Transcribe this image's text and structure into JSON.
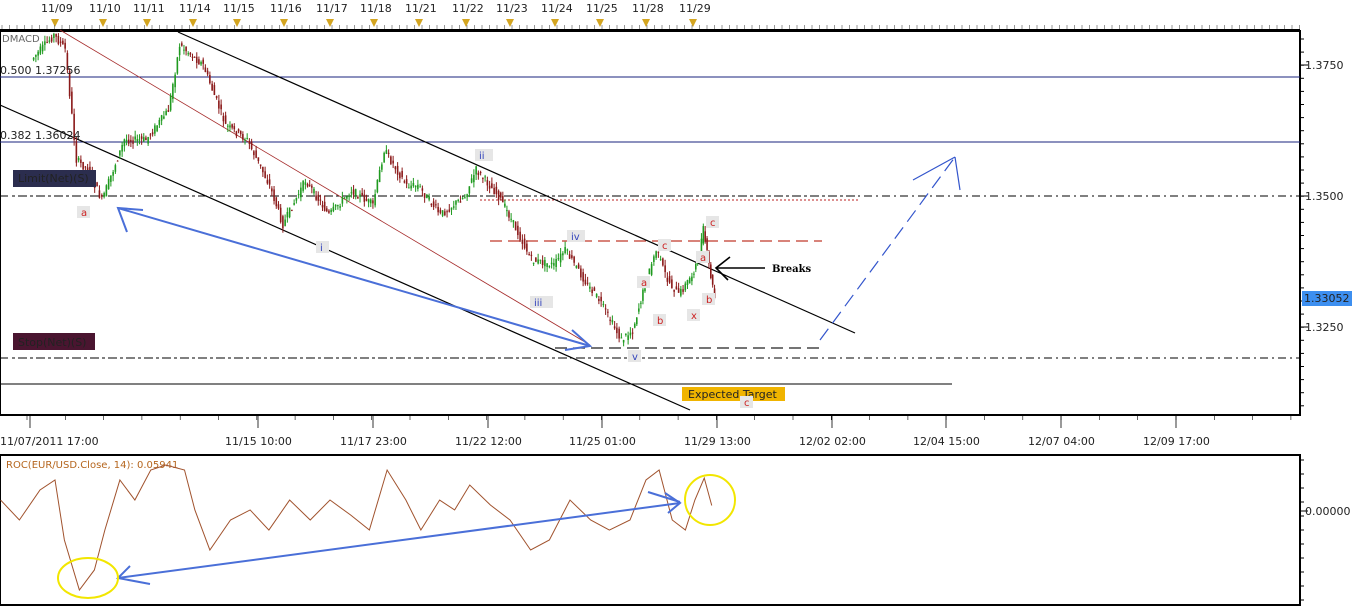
{
  "chart_data": [
    {
      "type": "candlestick",
      "title": "DMACD",
      "instrument": "EUR/USD",
      "top_date_labels": [
        "11/09",
        "11/10",
        "11/11",
        "11/14",
        "11/15",
        "11/16",
        "11/17",
        "11/18",
        "11/21",
        "11/22",
        "11/23",
        "11/24",
        "11/25",
        "11/28",
        "11/29"
      ],
      "x_tick_labels": [
        "11/07/2011 17:00",
        "11/15 10:00",
        "11/17 23:00",
        "11/22 12:00",
        "11/25 01:00",
        "11/29 13:00",
        "12/02 02:00",
        "12/04 15:00",
        "12/07 04:00",
        "12/09 17:00"
      ],
      "y_tick_labels": [
        "1.3750",
        "1.3500",
        "1.3250"
      ],
      "ylim": [
        1.31,
        1.383
      ],
      "current_price": "1.33052",
      "colors": {
        "up": "#1f9a1f",
        "down": "#8b1a1a",
        "current_price_bg": "#3d8ff0"
      },
      "close_path": {
        "x": [
          "11/08 12:00",
          "11/09 00:00",
          "11/09 06:00",
          "11/09 12:00",
          "11/09 18:00",
          "11/10 00:00",
          "11/10 12:00",
          "11/11 00:00",
          "11/11 12:00",
          "11/11 18:00",
          "11/14 06:00",
          "11/14 18:00",
          "11/15 06:00",
          "11/15 18:00",
          "11/16 00:00",
          "11/16 12:00",
          "11/17 00:00",
          "11/17 12:00",
          "11/18 00:00",
          "11/18 06:00",
          "11/18 18:00",
          "11/21 00:00",
          "11/21 12:00",
          "11/22 00:00",
          "11/22 06:00",
          "11/22 18:00",
          "11/23 00:00",
          "11/23 12:00",
          "11/24 00:00",
          "11/24 06:00",
          "11/24 18:00",
          "11/25 00:00",
          "11/25 12:00",
          "11/25 18:00",
          "11/28 00:00",
          "11/28 06:00",
          "11/28 12:00",
          "11/28 18:00",
          "11/29 00:00",
          "11/29 03:00",
          "11/29 06:00",
          "11/29 09:00",
          "11/29 12:00"
        ],
        "y": [
          1.376,
          1.3807,
          1.378,
          1.3569,
          1.355,
          1.3492,
          1.3607,
          1.3607,
          1.3664,
          1.3788,
          1.375,
          1.3635,
          1.3607,
          1.352,
          1.3445,
          1.353,
          1.3464,
          1.3511,
          1.3483,
          1.3588,
          1.352,
          1.352,
          1.3464,
          1.35,
          1.355,
          1.35,
          1.3464,
          1.3378,
          1.3368,
          1.3397,
          1.333,
          1.3302,
          1.3225,
          1.3244,
          1.333,
          1.3397,
          1.334,
          1.3311,
          1.3349,
          1.3378,
          1.3435,
          1.3368,
          1.3305
        ]
      },
      "levels": [
        {
          "label": "0.500 1.37256",
          "price": 1.37256,
          "color": "#1a237e"
        },
        {
          "label": "0.382 1.36024",
          "price": 1.36024,
          "color": "#1a237e"
        },
        {
          "label": "Limit(Net)(S)",
          "price": 1.35,
          "color": "#2b2d4e"
        },
        {
          "label": "Stop(Net)(S)",
          "price": 1.3195,
          "color": "#4a1530"
        }
      ],
      "annotations": {
        "waves_blue": [
          "ii",
          "i",
          "iv",
          "iii",
          "v"
        ],
        "waves_red": [
          "a",
          "c",
          "a",
          "b",
          "x",
          "c",
          "a",
          "b",
          "c"
        ],
        "breaks": "Breaks",
        "expected_target": "Expected Target"
      }
    },
    {
      "type": "line",
      "title": "ROC(EUR/USD.Close, 14): 0.05941",
      "y_tick_labels": [
        "0.00000"
      ],
      "color": "#a0522d",
      "series": {
        "x": [
          "11/07 19:00",
          "11/08 05:00",
          "11/08 16:00",
          "11/09 00:00",
          "11/09 05:00",
          "11/09 13:00",
          "11/09 21:00",
          "11/10 01:00",
          "11/10 09:00",
          "11/10 17:00",
          "11/11 02:00",
          "11/11 10:00",
          "11/11 20:00",
          "11/14 01:00",
          "11/14 09:00",
          "11/14 20:00",
          "11/15 07:00",
          "11/15 17:00",
          "11/16 03:00",
          "11/16 14:00",
          "11/17 00:00",
          "11/17 11:00",
          "11/17 21:00",
          "11/18 07:00",
          "11/18 17:00",
          "11/21 01:00",
          "11/21 11:00",
          "11/21 19:00",
          "11/22 02:00",
          "11/22 13:00",
          "11/23 00:00",
          "11/23 11:00",
          "11/23 21:00",
          "11/24 08:00",
          "11/24 19:00",
          "11/25 05:00",
          "11/25 16:00",
          "11/28 00:00",
          "11/28 07:00",
          "11/28 14:00",
          "11/28 21:00",
          "11/29 01:00",
          "11/29 06:00",
          "11/29 10:00"
        ],
        "y": [
          0.117,
          -0.096,
          0.224,
          0.331,
          -0.309,
          -0.843,
          -0.629,
          -0.203,
          0.331,
          0.117,
          0.437,
          0.491,
          0.437,
          0.011,
          -0.416,
          -0.096,
          0.011,
          -0.203,
          0.117,
          -0.096,
          0.117,
          -0.043,
          -0.203,
          0.437,
          0.117,
          -0.203,
          0.117,
          0.011,
          0.277,
          0.064,
          -0.096,
          -0.416,
          -0.309,
          0.117,
          -0.096,
          -0.203,
          -0.096,
          0.331,
          0.437,
          -0.096,
          -0.203,
          0.117,
          0.352,
          0.059
        ]
      }
    }
  ]
}
